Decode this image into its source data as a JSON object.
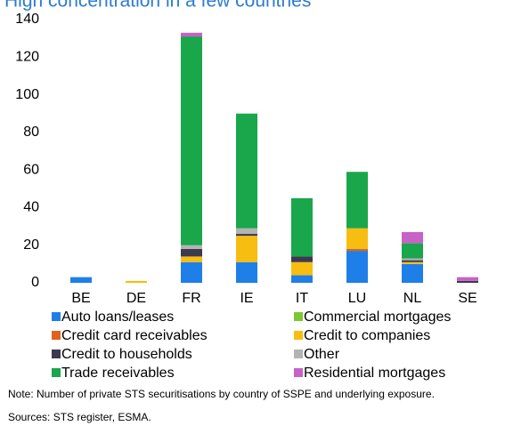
{
  "chart_data": {
    "type": "stacked_bar",
    "title": "High concentration in a few countries",
    "categories": [
      "BE",
      "DE",
      "FR",
      "IE",
      "IT",
      "LU",
      "NL",
      "SE"
    ],
    "ylim": [
      0,
      140
    ],
    "yticks": [
      0,
      20,
      40,
      60,
      80,
      100,
      120,
      140
    ],
    "series": [
      {
        "name": "Auto loans/leases",
        "color": "#1f7fe8",
        "values": [
          3,
          0,
          11,
          11,
          4,
          17,
          10,
          0
        ]
      },
      {
        "name": "Commercial mortgages",
        "color": "#7cc734",
        "values": [
          0,
          0,
          0,
          0,
          0,
          0,
          0,
          0
        ]
      },
      {
        "name": "Credit card receivables",
        "color": "#e0621c",
        "values": [
          0,
          0,
          0,
          0,
          0,
          1,
          0,
          0
        ]
      },
      {
        "name": "Credit to companies",
        "color": "#f7bd10",
        "values": [
          0,
          1,
          3,
          14,
          7,
          11,
          1,
          0
        ]
      },
      {
        "name": "Credit to households",
        "color": "#3b3a4e",
        "values": [
          0,
          0,
          4,
          1,
          3,
          0,
          1,
          1
        ]
      },
      {
        "name": "Other",
        "color": "#b3b3b3",
        "values": [
          0,
          0,
          2,
          3,
          0,
          0,
          1,
          0
        ]
      },
      {
        "name": "Trade receivables",
        "color": "#1aa64a",
        "values": [
          0,
          0,
          111,
          61,
          31,
          30,
          8,
          0
        ]
      },
      {
        "name": "Residential mortgages",
        "color": "#c762c7",
        "values": [
          0,
          0,
          2,
          0,
          0,
          0,
          6,
          2
        ]
      }
    ],
    "note": "Note: Number of private STS securitisations by country of SSPE and underlying exposure.",
    "source": "Sources: STS register, ESMA."
  }
}
